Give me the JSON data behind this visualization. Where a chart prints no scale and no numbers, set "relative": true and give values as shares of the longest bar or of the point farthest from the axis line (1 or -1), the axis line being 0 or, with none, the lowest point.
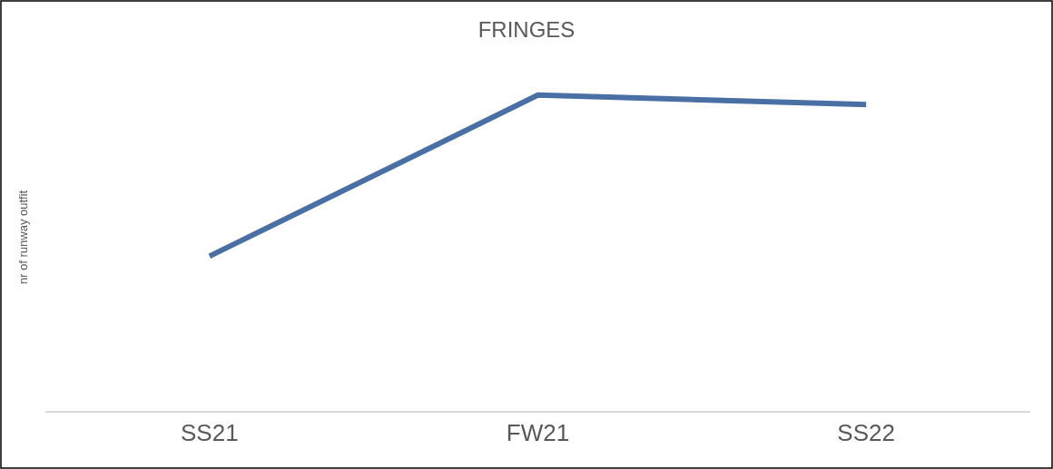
{
  "chart_data": {
    "type": "line",
    "title": "FRINGES",
    "ylabel": "nr of runway outfit",
    "categories": [
      "SS21",
      "FW21",
      "SS22"
    ],
    "series": [
      {
        "color": "#4a6fa5",
        "values": [
          0.49,
          1,
          0.97
        ]
      }
    ],
    "relative": true,
    "marker": "none",
    "line_style": "solid"
  }
}
